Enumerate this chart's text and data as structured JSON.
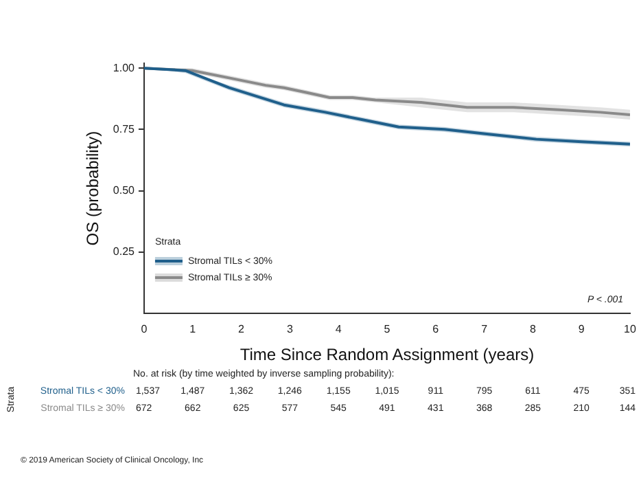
{
  "chart_data": {
    "type": "line",
    "xlabel": "Time Since Random Assignment (years)",
    "ylabel": "OS (probability)",
    "legend_title": "Strata",
    "legend": "bottom left",
    "grid": false,
    "xlim": [
      0,
      10
    ],
    "xticks": [
      0,
      1,
      2,
      3,
      4,
      5,
      6,
      7,
      8,
      9,
      10
    ],
    "ylim": [
      0,
      1.02
    ],
    "yticks": [
      {
        "value": 0.25,
        "label": "0.25"
      },
      {
        "value": 0.5,
        "label": "0.50"
      },
      {
        "value": 0.75,
        "label": "0.75"
      },
      {
        "value": 1,
        "label": "1.00"
      }
    ],
    "series": [
      {
        "name": "Stromal TILs < 30%",
        "color": "#1f5f8b",
        "x": [
          0,
          0.85,
          1.75,
          2.88,
          3.73,
          4.48,
          5.24,
          6.18,
          7.12,
          8.07,
          9.0,
          10
        ],
        "values": [
          1.0,
          0.99,
          0.92,
          0.85,
          0.82,
          0.79,
          0.76,
          0.75,
          0.73,
          0.71,
          0.7,
          0.69
        ],
        "lower": [
          1.0,
          0.98,
          0.91,
          0.84,
          0.81,
          0.78,
          0.75,
          0.74,
          0.72,
          0.7,
          0.69,
          0.68
        ],
        "upper": [
          1.0,
          0.99,
          0.93,
          0.86,
          0.83,
          0.8,
          0.77,
          0.76,
          0.74,
          0.72,
          0.71,
          0.7
        ]
      },
      {
        "name": "Stromal TILs ≥ 30%",
        "color": "#8a8a8a",
        "x": [
          0,
          0.99,
          1.75,
          2.5,
          2.88,
          3.35,
          3.82,
          4.29,
          4.76,
          5.7,
          6.65,
          7.6,
          8.54,
          9.39,
          10
        ],
        "values": [
          1.0,
          0.99,
          0.96,
          0.93,
          0.92,
          0.9,
          0.88,
          0.88,
          0.87,
          0.86,
          0.84,
          0.84,
          0.83,
          0.82,
          0.81
        ],
        "lower": [
          1.0,
          0.98,
          0.95,
          0.92,
          0.91,
          0.89,
          0.87,
          0.87,
          0.86,
          0.84,
          0.82,
          0.82,
          0.81,
          0.8,
          0.79
        ],
        "upper": [
          1.0,
          1.0,
          0.97,
          0.94,
          0.93,
          0.91,
          0.89,
          0.89,
          0.88,
          0.88,
          0.86,
          0.86,
          0.85,
          0.84,
          0.83
        ]
      }
    ],
    "annotations": [
      "P < .001",
      "No. at risk (by time weighted by inverse sampling probability):",
      "Strata",
      "Stromal TILs < 30%",
      "1,537",
      "1,487",
      "1,362",
      "1,246",
      "1,155",
      "1,015",
      "911",
      "795",
      "611",
      "475",
      "351",
      "Stromal TILs ≥ 30%",
      "672",
      "662",
      "625",
      "577",
      "545",
      "491",
      "431",
      "368",
      "285",
      "210",
      "144",
      "© 2019 American Society of Clinical Oncology, Inc"
    ]
  }
}
